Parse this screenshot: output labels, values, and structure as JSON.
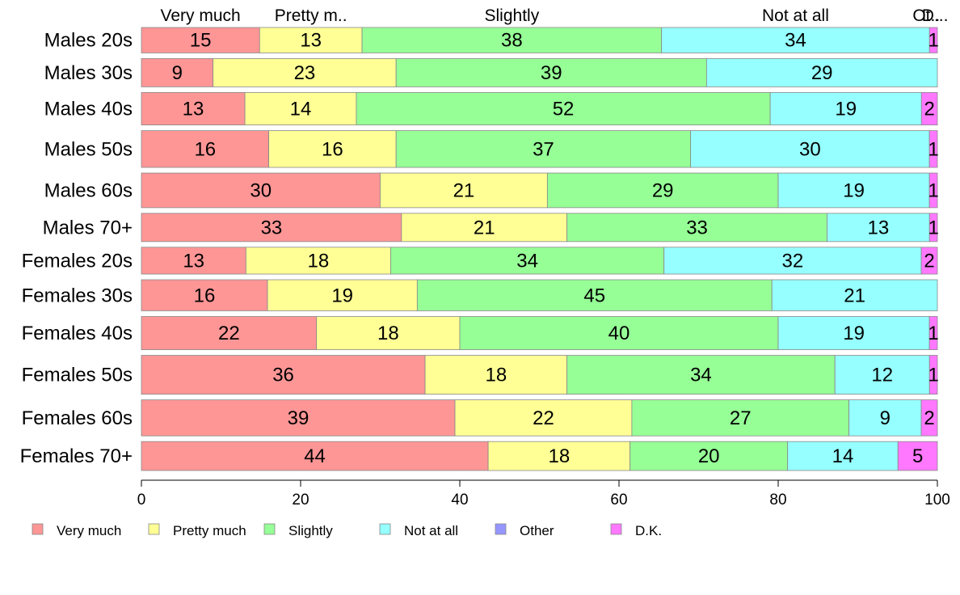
{
  "chart_data": {
    "type": "bar",
    "orientation": "horizontal",
    "stacked": true,
    "categories": [
      "Males 20s",
      "Males 30s",
      "Males 40s",
      "Males 50s",
      "Males 60s",
      "Males 70+",
      "Females 20s",
      "Females 30s",
      "Females 40s",
      "Females 50s",
      "Females 60s",
      "Females 70+"
    ],
    "series": [
      {
        "name": "Very much",
        "color": "#ff9696",
        "values": [
          15,
          9,
          13,
          16,
          30,
          33,
          13,
          16,
          22,
          36,
          39,
          44
        ]
      },
      {
        "name": "Pretty much",
        "color": "#ffff96",
        "values": [
          13,
          23,
          14,
          16,
          21,
          21,
          18,
          19,
          18,
          18,
          22,
          18
        ]
      },
      {
        "name": "Slightly",
        "color": "#96ff96",
        "values": [
          38,
          39,
          52,
          37,
          29,
          33,
          34,
          45,
          40,
          34,
          27,
          20
        ]
      },
      {
        "name": "Not at all",
        "color": "#96ffff",
        "values": [
          34,
          29,
          19,
          30,
          19,
          13,
          32,
          21,
          19,
          12,
          9,
          14
        ]
      },
      {
        "name": "Other",
        "color": "#9696ff",
        "values": [
          0,
          0,
          0,
          0,
          0,
          0,
          0,
          0,
          0,
          0,
          0,
          0
        ]
      },
      {
        "name": "D.K.",
        "color": "#ff78ff",
        "values": [
          1,
          0,
          2,
          1,
          1,
          1,
          2,
          0,
          1,
          1,
          2,
          5
        ]
      }
    ],
    "column_headers": [
      "Very much",
      "Pretty m..",
      "Slightly",
      "Not at all",
      "Ot..",
      "D..."
    ],
    "row_weights": [
      36,
      40,
      46,
      52,
      49,
      40,
      38,
      44,
      47,
      55,
      51,
      41
    ],
    "xlim": [
      0,
      100
    ],
    "xticks": [
      0,
      20,
      40,
      60,
      80,
      100
    ],
    "legend_position": "bottom",
    "grid": false
  }
}
